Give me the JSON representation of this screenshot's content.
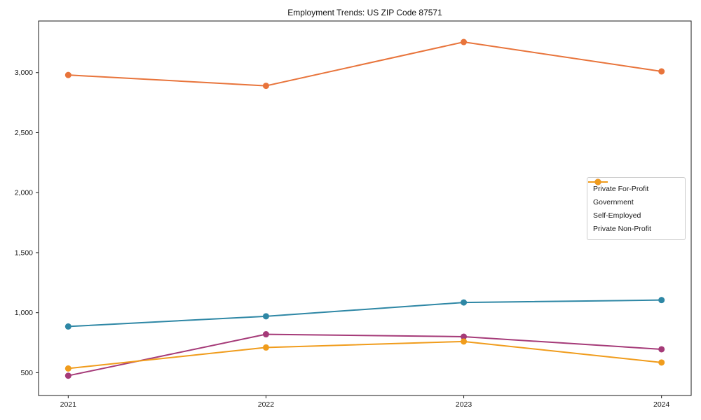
{
  "title": "Employment Trends: US ZIP Code 87571",
  "chart_data": {
    "type": "line",
    "title": "Employment Trends: US ZIP Code 87571",
    "xlabel": "",
    "ylabel": "",
    "x": [
      2021,
      2022,
      2023,
      2024
    ],
    "x_tick_labels": [
      "2021",
      "2022",
      "2023",
      "2024"
    ],
    "series": [
      {
        "name": "Private For-Profit",
        "color": "#E8743B",
        "values": [
          2980,
          2890,
          3255,
          3010
        ]
      },
      {
        "name": "Government",
        "color": "#2E87A5",
        "values": [
          885,
          970,
          1085,
          1105
        ]
      },
      {
        "name": "Self-Employed",
        "color": "#A53A78",
        "values": [
          475,
          820,
          800,
          695
        ]
      },
      {
        "name": "Private Non-Profit",
        "color": "#F09C1C",
        "values": [
          535,
          710,
          760,
          585
        ]
      }
    ],
    "y_ticks": [
      500,
      1000,
      1500,
      2000,
      2500,
      3000
    ],
    "y_tick_labels": [
      "500",
      "1,000",
      "1,500",
      "2,000",
      "2,500",
      "3,000"
    ],
    "xlim": [
      2020.85,
      2024.15
    ],
    "ylim": [
      310,
      3430
    ],
    "grid": false,
    "legend_position": "center-right",
    "marker": "circle",
    "line_width": 2,
    "marker_radius": 4.5,
    "axis_color": "#1a1a1a",
    "tick_label_color": "#1a1a1a"
  }
}
